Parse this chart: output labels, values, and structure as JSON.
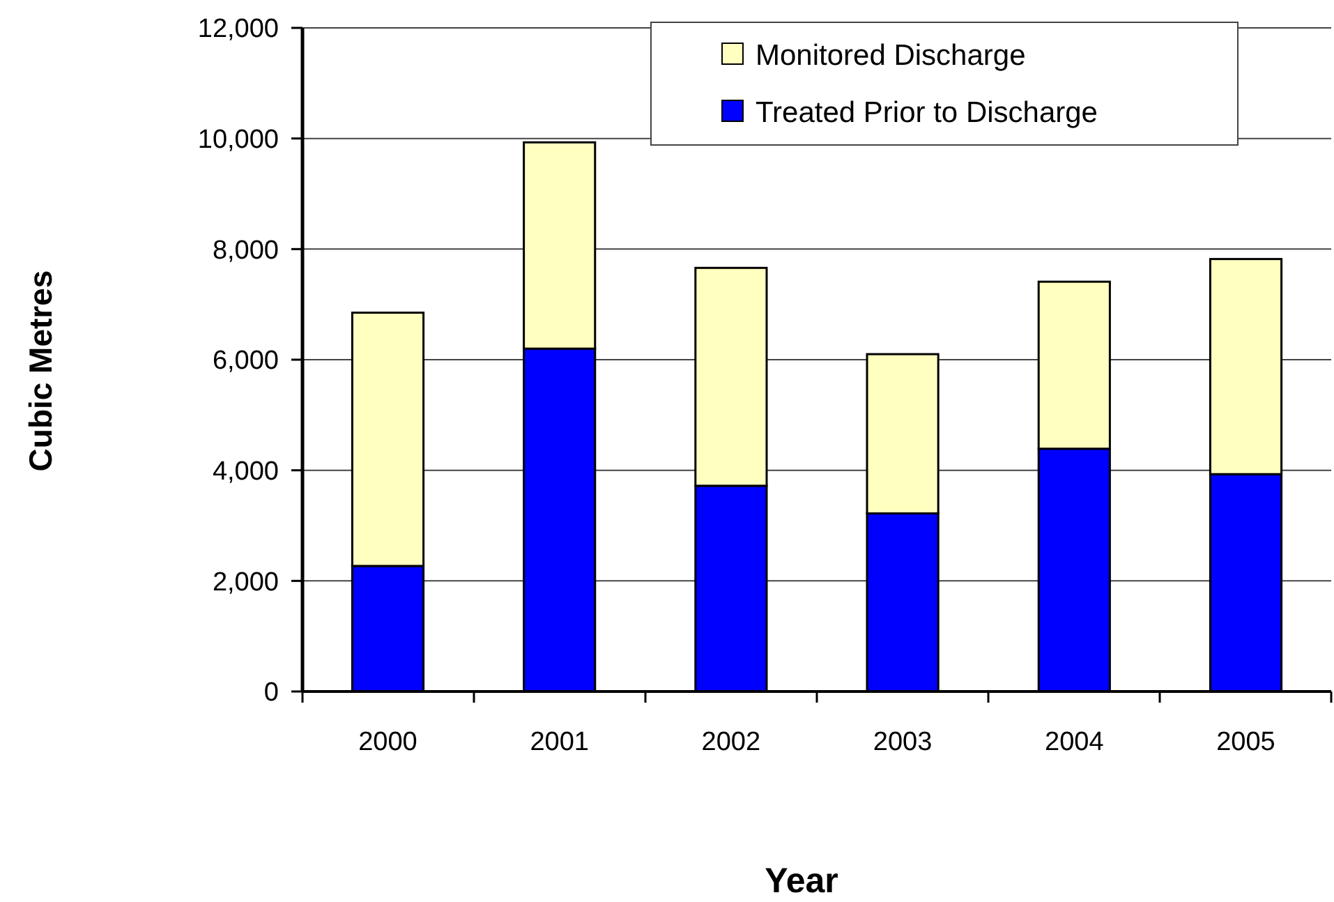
{
  "chart_data": {
    "type": "bar",
    "xlabel": "Year",
    "ylabel": "Cubic Metres",
    "categories": [
      "2000",
      "2001",
      "2002",
      "2003",
      "2004",
      "2005"
    ],
    "series": [
      {
        "name": "Treated Prior to Discharge",
        "color": "#0000ff",
        "values": [
          2270,
          6200,
          3720,
          3220,
          4390,
          3930
        ]
      },
      {
        "name": "Monitored Discharge",
        "color": "#ffffc0",
        "values": [
          4580,
          3730,
          3940,
          2880,
          3020,
          3890
        ]
      }
    ],
    "stacked": true,
    "ylim": [
      0,
      12000
    ],
    "yticks": [
      0,
      {
        "value": 2000,
        "label": "2,000"
      },
      {
        "value": 4000,
        "label": "4,000"
      },
      {
        "value": 6000,
        "label": "6,000"
      },
      {
        "value": 8000,
        "label": "8,000"
      },
      {
        "value": 10000,
        "label": "10,000"
      },
      {
        "value": 12000,
        "label": "12,000"
      }
    ],
    "grid": "y",
    "legend": "top right"
  }
}
